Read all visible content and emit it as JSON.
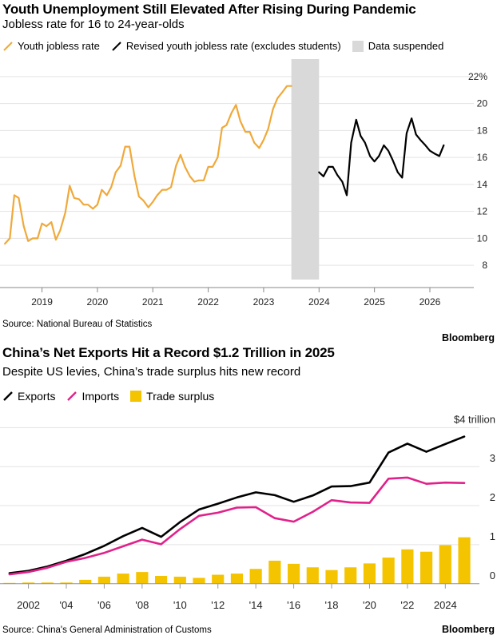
{
  "chart1": {
    "title": "Youth Unemployment Still Elevated After Rising During Pandemic",
    "subtitle": "Jobless rate for 16 to 24-year-olds",
    "legend": [
      {
        "label": "Youth jobless rate",
        "color": "#f0a93a",
        "kind": "line"
      },
      {
        "label": "Revised youth jobless rate (excludes students)",
        "color": "#000000",
        "kind": "line"
      },
      {
        "label": "Data suspended",
        "color": "#d9d9d9",
        "kind": "box"
      }
    ],
    "source": "Source: National Bureau of Statistics",
    "brand": "Bloomberg"
  },
  "chart2": {
    "title": "China’s Net Exports Hit a Record $1.2 Trillion in 2025",
    "subtitle": "Despite US levies, China’s trade surplus hits new record",
    "legend": [
      {
        "label": "Exports",
        "color": "#000000",
        "kind": "line"
      },
      {
        "label": "Imports",
        "color": "#e0218a",
        "kind": "line"
      },
      {
        "label": "Trade surplus",
        "color": "#f5c400",
        "kind": "box"
      }
    ],
    "source": "Source: China's General Administration of Customs",
    "brand": "Bloomberg"
  },
  "chart_data": [
    {
      "type": "line",
      "title": "Youth Unemployment Still Elevated After Rising During Pandemic",
      "subtitle": "Jobless rate for 16 to 24-year-olds",
      "xlabel": "",
      "ylabel": "",
      "x_ticks": [
        "2019",
        "2020",
        "2021",
        "2022",
        "2023",
        "2024",
        "2025",
        "2026"
      ],
      "y_ticks": [
        "8",
        "10",
        "12",
        "14",
        "16",
        "18",
        "20",
        "22%"
      ],
      "xlim": [
        2018.3,
        2026.75
      ],
      "ylim": [
        7,
        23
      ],
      "y_axis_side": "right",
      "grid": "horizontal",
      "shaded_period": {
        "label": "Data suspended",
        "x": [
          2023.5,
          2024.0
        ]
      },
      "series": [
        {
          "name": "Youth jobless rate",
          "color": "#f0a93a",
          "x": [
            2018.33,
            2018.42,
            2018.5,
            2018.58,
            2018.67,
            2018.75,
            2018.83,
            2018.92,
            2019.0,
            2019.08,
            2019.17,
            2019.25,
            2019.33,
            2019.42,
            2019.5,
            2019.58,
            2019.67,
            2019.75,
            2019.83,
            2019.92,
            2020.0,
            2020.08,
            2020.17,
            2020.25,
            2020.33,
            2020.42,
            2020.5,
            2020.58,
            2020.67,
            2020.75,
            2020.83,
            2020.92,
            2021.0,
            2021.08,
            2021.17,
            2021.25,
            2021.33,
            2021.42,
            2021.5,
            2021.58,
            2021.67,
            2021.75,
            2021.83,
            2021.92,
            2022.0,
            2022.08,
            2022.17,
            2022.25,
            2022.33,
            2022.42,
            2022.5,
            2022.58,
            2022.67,
            2022.75,
            2022.83,
            2022.92,
            2023.0,
            2023.08,
            2023.17,
            2023.25,
            2023.33,
            2023.42,
            2023.5
          ],
          "values": [
            9.6,
            10.0,
            13.2,
            13.0,
            10.9,
            9.8,
            10.0,
            10.0,
            11.1,
            10.9,
            11.2,
            9.9,
            10.6,
            11.9,
            13.9,
            13.0,
            12.9,
            12.5,
            12.5,
            12.2,
            12.5,
            13.6,
            13.2,
            13.8,
            14.9,
            15.4,
            16.8,
            16.8,
            14.6,
            13.1,
            12.8,
            12.3,
            12.7,
            13.2,
            13.6,
            13.6,
            13.8,
            15.4,
            16.2,
            15.3,
            14.6,
            14.2,
            14.3,
            14.3,
            15.3,
            15.3,
            16.0,
            18.2,
            18.4,
            19.3,
            19.9,
            18.7,
            17.9,
            17.9,
            17.1,
            16.7,
            17.3,
            18.1,
            19.6,
            20.4,
            20.8,
            21.3,
            21.3
          ]
        },
        {
          "name": "Revised youth jobless rate (excludes students)",
          "color": "#000000",
          "x": [
            2024.0,
            2024.08,
            2024.17,
            2024.25,
            2024.33,
            2024.42,
            2024.5,
            2024.58,
            2024.67,
            2024.75,
            2024.83,
            2024.92,
            2025.0,
            2025.08,
            2025.17,
            2025.25,
            2025.33,
            2025.42,
            2025.5,
            2025.58,
            2025.67,
            2025.75,
            2025.83,
            2025.92,
            2026.0,
            2026.08,
            2026.17,
            2026.25
          ],
          "values": [
            14.9,
            14.6,
            15.3,
            15.3,
            14.7,
            14.2,
            13.2,
            17.1,
            18.8,
            17.6,
            17.1,
            16.1,
            15.7,
            16.1,
            16.9,
            16.5,
            15.8,
            14.9,
            14.5,
            17.8,
            18.9,
            17.7,
            17.3,
            16.9,
            16.5,
            16.3,
            16.1,
            16.9
          ]
        }
      ]
    },
    {
      "type": "line",
      "title": "China’s Net Exports Hit a Record $1.2 Trillion in 2025",
      "subtitle": "Despite US levies, China’s trade surplus hits new record",
      "xlabel": "",
      "ylabel": "",
      "x_ticks": [
        "2002",
        "'04",
        "'06",
        "'08",
        "'10",
        "'12",
        "'14",
        "'16",
        "'18",
        "'20",
        "'22",
        "2024"
      ],
      "y_ticks": [
        "0",
        "1",
        "2",
        "3",
        "$4 trillion"
      ],
      "xlim": [
        2000.5,
        2025.8
      ],
      "ylim": [
        -0.25,
        4.15
      ],
      "y_axis_side": "right",
      "grid": "horizontal",
      "categories": [
        2001,
        2002,
        2003,
        2004,
        2005,
        2006,
        2007,
        2008,
        2009,
        2010,
        2011,
        2012,
        2013,
        2014,
        2015,
        2016,
        2017,
        2018,
        2019,
        2020,
        2021,
        2022,
        2023,
        2024,
        2025
      ],
      "series": [
        {
          "name": "Exports",
          "color": "#000000",
          "kind": "line",
          "values": [
            0.27,
            0.33,
            0.44,
            0.59,
            0.76,
            0.97,
            1.22,
            1.43,
            1.2,
            1.58,
            1.9,
            2.05,
            2.21,
            2.34,
            2.27,
            2.1,
            2.26,
            2.49,
            2.5,
            2.59,
            3.36,
            3.59,
            3.38,
            3.58,
            3.77
          ]
        },
        {
          "name": "Imports",
          "color": "#e0218a",
          "kind": "line",
          "values": [
            0.24,
            0.3,
            0.41,
            0.56,
            0.66,
            0.79,
            0.96,
            1.13,
            1.01,
            1.4,
            1.74,
            1.82,
            1.95,
            1.96,
            1.68,
            1.59,
            1.84,
            2.14,
            2.08,
            2.07,
            2.69,
            2.72,
            2.56,
            2.59,
            2.58
          ]
        },
        {
          "name": "Trade surplus",
          "color": "#f5c400",
          "kind": "bar",
          "values": [
            0.02,
            0.03,
            0.03,
            0.03,
            0.1,
            0.18,
            0.26,
            0.3,
            0.2,
            0.18,
            0.15,
            0.23,
            0.26,
            0.38,
            0.59,
            0.51,
            0.42,
            0.35,
            0.42,
            0.52,
            0.67,
            0.88,
            0.82,
            0.99,
            1.19
          ]
        }
      ]
    }
  ]
}
